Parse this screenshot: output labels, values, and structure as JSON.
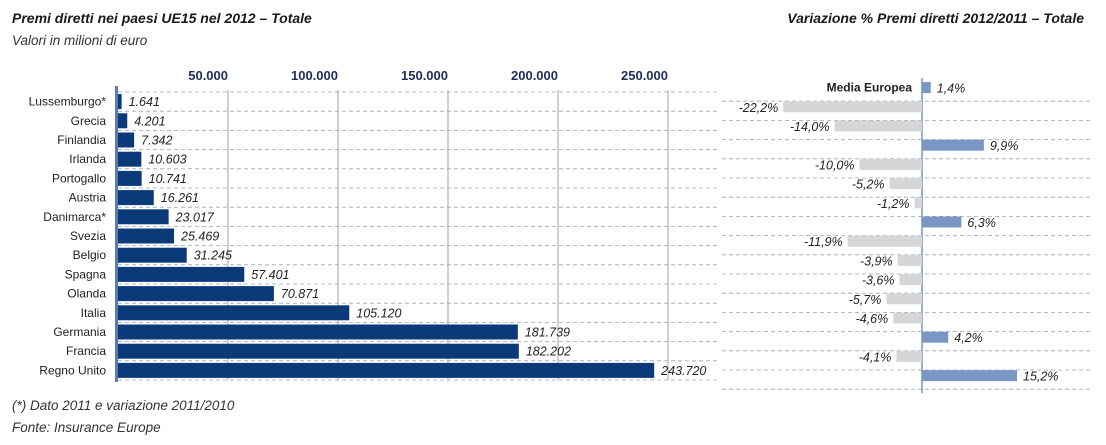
{
  "header": {
    "left_title": "Premi diretti nei paesi UE15 nel 2012 – Totale",
    "left_subtitle": "Valori in milioni di euro",
    "right_title": "Variazione % Premi diretti 2012/2011 – Totale"
  },
  "footer": {
    "note": "(*) Dato 2011 e variazione 2011/2010",
    "source": "Fonte: Insurance Europe"
  },
  "colors": {
    "bar_left": "#0b3a78",
    "bar_positive": "#7a97c4",
    "bar_negative": "#d6d6d6",
    "grid": "#9aa3b8",
    "axis": "#5b79b4"
  },
  "chart_data": [
    {
      "type": "bar",
      "orientation": "horizontal",
      "title": "Premi diretti nei paesi UE15 nel 2012 – Totale",
      "subtitle": "Valori in milioni di euro",
      "xlim": [
        0,
        270000
      ],
      "ticks": [
        50000,
        100000,
        150000,
        200000,
        250000
      ],
      "tick_labels": [
        "50.000",
        "100.000",
        "150.000",
        "200.000",
        "250.000"
      ],
      "categories": [
        "Lussemburgo*",
        "Grecia",
        "Finlandia",
        "Irlanda",
        "Portogallo",
        "Austria",
        "Danimarca*",
        "Svezia",
        "Belgio",
        "Spagna",
        "Olanda",
        "Italia",
        "Germania",
        "Francia",
        "Regno Unito"
      ],
      "values": [
        1641,
        4201,
        7342,
        10603,
        10741,
        16261,
        23017,
        25469,
        31245,
        57401,
        70871,
        105120,
        181739,
        182202,
        243720
      ],
      "value_labels": [
        "1.641",
        "4.201",
        "7.342",
        "10.603",
        "10.741",
        "16.261",
        "23.017",
        "25.469",
        "31.245",
        "57.401",
        "70.871",
        "105.120",
        "181.739",
        "182.202",
        "243.720"
      ],
      "grid": true
    },
    {
      "type": "bar",
      "orientation": "horizontal",
      "title": "Variazione % Premi diretti 2012/2011 – Totale",
      "categories": [
        "Media Europea",
        "Lussemburgo*",
        "Grecia",
        "Finlandia",
        "Irlanda",
        "Portogallo",
        "Austria",
        "Danimarca*",
        "Svezia",
        "Belgio",
        "Spagna",
        "Olanda",
        "Italia",
        "Germania",
        "Francia",
        "Regno Unito"
      ],
      "values": [
        1.4,
        -22.2,
        -14.0,
        9.9,
        -10.0,
        -5.2,
        -1.2,
        6.3,
        -11.9,
        -3.9,
        -3.6,
        -5.7,
        -4.6,
        4.2,
        -4.1,
        15.2
      ],
      "value_labels": [
        "1,4%",
        "-22,2%",
        "-14,0%",
        "9,9%",
        "-10,0%",
        "-5,2%",
        "-1,2%",
        "6,3%",
        "-11,9%",
        "-3,9%",
        "-3,6%",
        "-5,7%",
        "-4,6%",
        "4,2%",
        "-4,1%",
        "15,2%"
      ],
      "grid": true
    }
  ]
}
